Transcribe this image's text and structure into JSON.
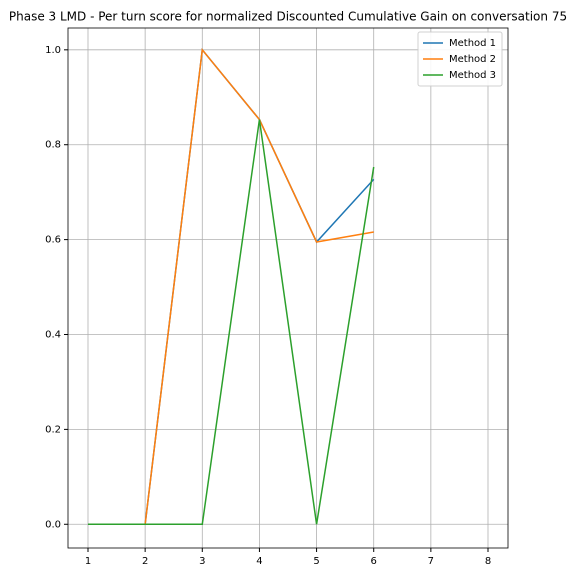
{
  "chart_data": {
    "type": "line",
    "title": "Phase 3 LMD - Per turn score for normalized Discounted Cumulative Gain on conversation 75",
    "x": [
      1,
      2,
      3,
      4,
      5,
      6
    ],
    "series": [
      {
        "name": "Method 1",
        "color": "#1f77b4",
        "values": [
          0,
          0,
          1.0,
          0.853,
          0.595,
          0.727
        ]
      },
      {
        "name": "Method 2",
        "color": "#ff7f0e",
        "values": [
          0,
          0,
          1.0,
          0.853,
          0.595,
          0.616
        ]
      },
      {
        "name": "Method 3",
        "color": "#2ca02c",
        "values": [
          0,
          0,
          0,
          0.853,
          0,
          0.753
        ]
      }
    ],
    "xlim": [
      0.65,
      8.35
    ],
    "xticks": [
      1,
      2,
      3,
      4,
      5,
      6,
      7,
      8
    ],
    "ylim": [
      -0.05,
      1.046
    ],
    "yticks": [
      {
        "value": 0,
        "label": "0.0"
      },
      0.2,
      0.4,
      0.6,
      0.8,
      {
        "value": 1,
        "label": "1.0"
      }
    ],
    "grid": true,
    "legend": "upper-right"
  }
}
